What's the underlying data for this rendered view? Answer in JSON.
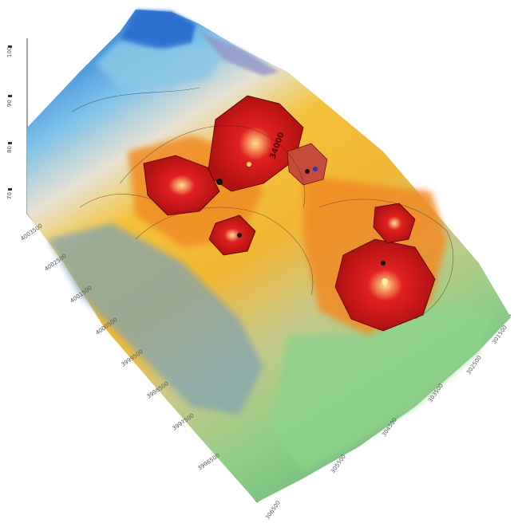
{
  "map": {
    "surface_label": "34000",
    "palette": {
      "high": "#d81e1e",
      "upper": "#f08a24",
      "mid": "#f2c63a",
      "low": "#8fcf86",
      "lowest": "#2f7fd6",
      "shadow": "#7a8fa0"
    },
    "left_axis_labels": [
      "4003500",
      "4002500",
      "4001500",
      "4000500",
      "3999500",
      "3998500",
      "3997500",
      "3996500"
    ],
    "bottom_axis_labels": [
      "306500",
      "305500",
      "304500",
      "303500",
      "302500",
      "301500"
    ],
    "vertical_axis_labels": [
      "100",
      "90",
      "80",
      "70"
    ]
  }
}
